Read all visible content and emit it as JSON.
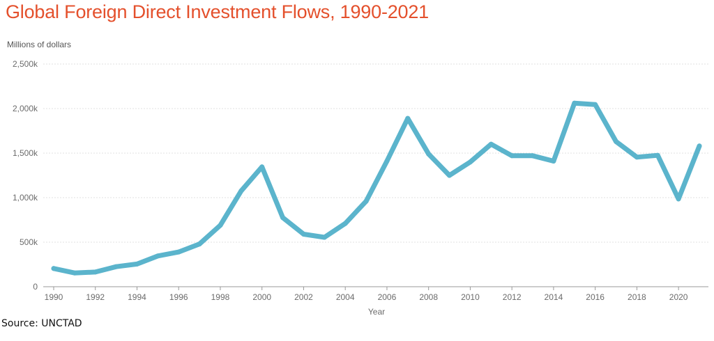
{
  "title": "Global Foreign Direct Investment Flows, 1990-2021",
  "unit_label": "Millions of dollars",
  "source": "Source: UNCTAD",
  "colors": {
    "title": "#e4502c",
    "line": "#5bb4cc",
    "grid": "#e2e2e2",
    "tick": "#6b6b6b"
  },
  "chart_data": {
    "type": "line",
    "title": "Global Foreign Direct Investment Flows, 1990-2021",
    "xlabel": "Year",
    "ylabel": "Millions of dollars",
    "ylim": [
      0,
      2500000
    ],
    "xlim": [
      1990,
      2021
    ],
    "grid": true,
    "y_ticks": [
      0,
      500000,
      1000000,
      1500000,
      2000000,
      2500000
    ],
    "y_tick_labels": [
      "0",
      "500k",
      "1,000k",
      "1,500k",
      "2,000k",
      "2,500k"
    ],
    "x_ticks": [
      1990,
      1992,
      1994,
      1996,
      1998,
      2000,
      2002,
      2004,
      2006,
      2008,
      2010,
      2012,
      2014,
      2016,
      2018,
      2020
    ],
    "x_tick_labels": [
      "1990",
      "1992",
      "1994",
      "1996",
      "1998",
      "2000",
      "2002",
      "2004",
      "2006",
      "2008",
      "2010",
      "2012",
      "2014",
      "2016",
      "2018",
      "2020"
    ],
    "series": [
      {
        "x": [
          1990,
          1991,
          1992,
          1993,
          1994,
          1995,
          1996,
          1997,
          1998,
          1999,
          2000,
          2001,
          2002,
          2003,
          2004,
          2005,
          2006,
          2007,
          2008,
          2009,
          2010,
          2011,
          2012,
          2013,
          2014,
          2015,
          2016,
          2017,
          2018,
          2019,
          2020,
          2021
        ],
        "values": [
          205000,
          155000,
          165000,
          225000,
          255000,
          345000,
          390000,
          480000,
          690000,
          1075000,
          1345000,
          775000,
          590000,
          555000,
          710000,
          960000,
          1410000,
          1890000,
          1490000,
          1250000,
          1400000,
          1600000,
          1470000,
          1470000,
          1410000,
          2060000,
          2045000,
          1630000,
          1455000,
          1475000,
          985000,
          1580000
        ]
      }
    ]
  }
}
